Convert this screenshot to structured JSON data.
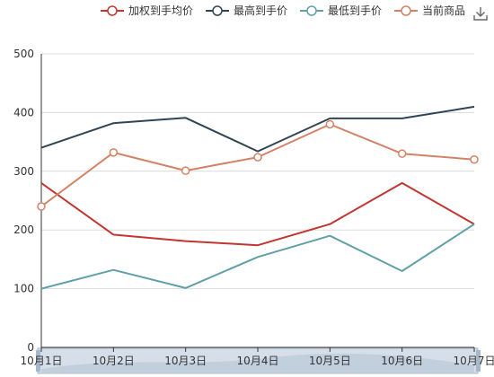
{
  "chart_data": {
    "type": "line",
    "categories": [
      "10月1日",
      "10月2日",
      "10月3日",
      "10月4日",
      "10月5日",
      "10月6日",
      "10月7日"
    ],
    "ylim": [
      0,
      500
    ],
    "yticks": [
      0,
      100,
      200,
      300,
      400,
      500
    ],
    "grid": true,
    "legend_position": "top-right",
    "series": [
      {
        "name": "加权到手均价",
        "color": "#c23531",
        "values": [
          280,
          192,
          181,
          174,
          210,
          280,
          210
        ],
        "show_markers": false
      },
      {
        "name": "最高到手价",
        "color": "#2f4554",
        "values": [
          340,
          382,
          391,
          334,
          390,
          390,
          410
        ],
        "show_markers": false
      },
      {
        "name": "最低到手价",
        "color": "#61a0a8",
        "values": [
          100,
          132,
          101,
          154,
          190,
          130,
          210
        ],
        "show_markers": false
      },
      {
        "name": "当前商品",
        "color": "#d48265",
        "values": [
          240,
          332,
          301,
          324,
          380,
          330,
          320
        ],
        "show_markers": true
      }
    ]
  },
  "toolbar": {
    "download_icon": "download-icon"
  }
}
